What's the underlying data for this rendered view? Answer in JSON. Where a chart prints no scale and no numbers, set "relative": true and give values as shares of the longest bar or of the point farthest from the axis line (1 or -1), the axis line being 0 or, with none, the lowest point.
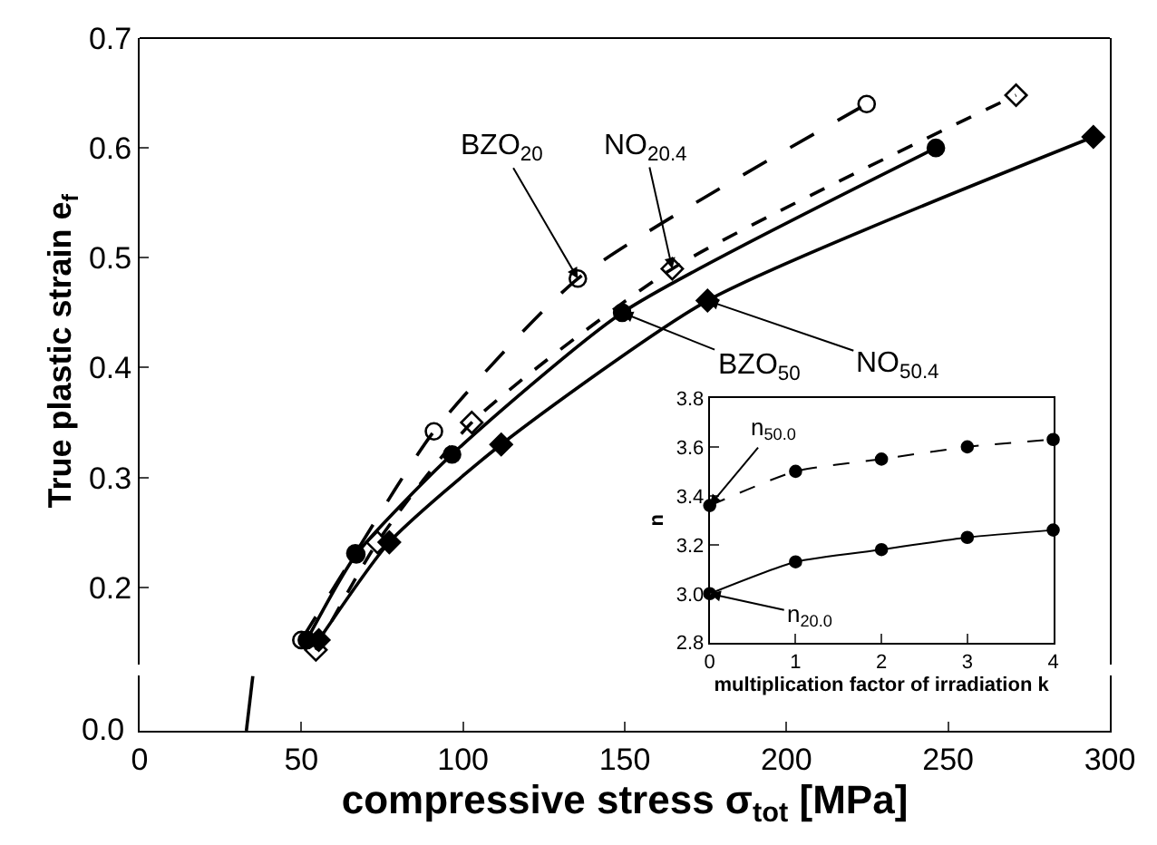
{
  "chart_data": [
    {
      "type": "line",
      "xlabel": "compressive stress σ$_{tot}$ [MPa]",
      "ylabel": "True plastic strain e$_{f}$",
      "xlim": [
        0,
        300
      ],
      "xticks": [
        0,
        50,
        100,
        150,
        200,
        250,
        300
      ],
      "ylim": [
        0.13,
        0.7
      ],
      "yticks": [
        0.2,
        0.3,
        0.4,
        0.5,
        0.6,
        0.7
      ],
      "series": [
        {
          "color": "#000000",
          "marker": "circle-open",
          "line_style": "longdash",
          "x": [
            50,
            66.7,
            91,
            135.5,
            224.8
          ],
          "values": [
            0.152,
            0.231,
            0.342,
            0.481,
            0.64
          ]
        },
        {
          "color": "#000000",
          "marker": "diamond-open",
          "line_style": "dashed",
          "x": [
            54.5,
            73.5,
            102.7,
            164.7,
            271
          ],
          "values": [
            0.143,
            0.241,
            0.35,
            0.49,
            0.648
          ]
        },
        {
          "color": "#000000",
          "marker": "circle",
          "line_style": "solid",
          "x": [
            51.7,
            67,
            96.6,
            149.2,
            246.2
          ],
          "values": [
            0.152,
            0.23,
            0.321,
            0.45,
            0.6
          ]
        },
        {
          "color": "#000000",
          "marker": "diamond",
          "line_style": "solid",
          "x": [
            55.4,
            77.2,
            111.8,
            175.6,
            294.9
          ],
          "values": [
            0.152,
            0.241,
            0.33,
            0.461,
            0.61
          ]
        }
      ],
      "annotations": [
        {
          "text": "BZO$_{20}$",
          "x": 135.5,
          "y": 0.481
        },
        {
          "text": "NO$_{20.4}$",
          "x": 164.7,
          "y": 0.49
        },
        {
          "text": "BZO$_{50}$",
          "x": 149.2,
          "y": 0.45
        },
        {
          "text": "NO$_{50.4}$",
          "x": 175.6,
          "y": 0.461
        }
      ]
    },
    {
      "type": "line",
      "xlim": [
        0,
        300
      ],
      "xticks": [
        0,
        50,
        100,
        150,
        200,
        250,
        300
      ],
      "relative": true,
      "tick_labels": "y",
      "series": [
        {
          "color": "#000000",
          "marker": "none",
          "line_style": "solid",
          "x": [
            33,
            35
          ],
          "values": [
            0,
            1
          ]
        }
      ],
      "annotations": [
        "0.0"
      ]
    },
    {
      "type": "line",
      "xlabel": "multiplication factor of irradiation k",
      "ylabel": "n",
      "xlim": [
        0,
        4
      ],
      "xticks": [
        0,
        1,
        2,
        3,
        4
      ],
      "ylim": [
        2.8,
        3.8
      ],
      "yticks": [
        {
          "value": 2.8,
          "label": "2.8"
        },
        {
          "value": 3.0,
          "label": "3.0"
        },
        {
          "value": 3.2,
          "label": "3.2"
        },
        {
          "value": 3.4,
          "label": "3.4"
        },
        {
          "value": 3.6,
          "label": "3.6"
        },
        {
          "value": 3.8,
          "label": "3.8"
        }
      ],
      "series": [
        {
          "color": "#000000",
          "marker": "circle",
          "line_style": "dashed",
          "x": [
            0,
            1,
            2,
            3,
            4
          ],
          "values": [
            3.36,
            3.5,
            3.55,
            3.6,
            3.63
          ]
        },
        {
          "color": "#000000",
          "marker": "circle",
          "line_style": "solid",
          "x": [
            0,
            1,
            2,
            3,
            4
          ],
          "values": [
            3.0,
            3.13,
            3.18,
            3.23,
            3.26
          ]
        }
      ],
      "annotations": [
        {
          "text": "n$_{50.0}$",
          "x": 0,
          "y": 3.36
        },
        {
          "text": "n$_{20.0}$",
          "x": 0,
          "y": 3.0
        }
      ]
    }
  ]
}
